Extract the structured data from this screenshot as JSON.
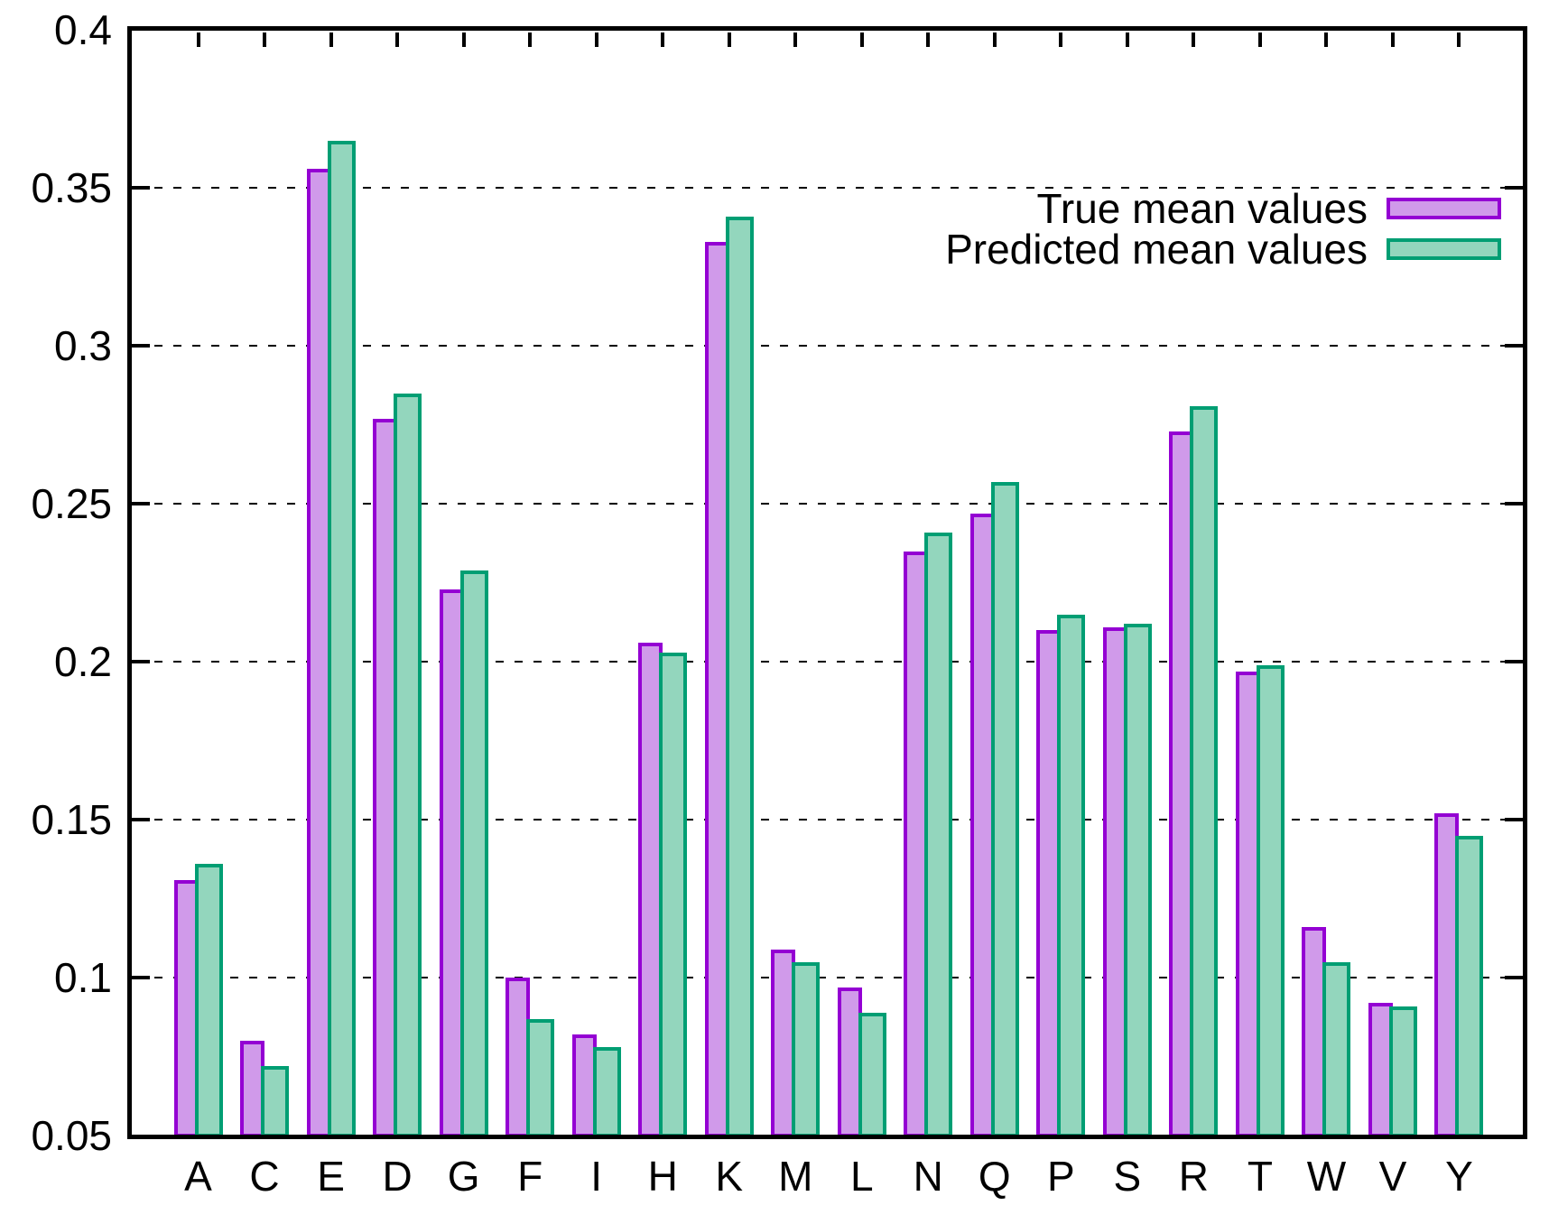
{
  "chart_data": {
    "type": "bar",
    "title": "",
    "xlabel": "",
    "ylabel": "",
    "categories": [
      "A",
      "C",
      "E",
      "D",
      "G",
      "F",
      "I",
      "H",
      "K",
      "M",
      "L",
      "N",
      "Q",
      "P",
      "S",
      "R",
      "T",
      "W",
      "V",
      "Y"
    ],
    "series": [
      {
        "name": "True mean values",
        "fill_color": "#d09aea",
        "line_color": "#9400d3",
        "values": [
          0.131,
          0.08,
          0.356,
          0.277,
          0.223,
          0.1,
          0.082,
          0.206,
          0.333,
          0.109,
          0.097,
          0.235,
          0.247,
          0.21,
          0.211,
          0.273,
          0.197,
          0.116,
          0.092,
          0.152
        ]
      },
      {
        "name": "Predicted mean values",
        "fill_color": "#93d6bd",
        "line_color": "#009e73",
        "values": [
          0.136,
          0.072,
          0.365,
          0.285,
          0.229,
          0.087,
          0.078,
          0.203,
          0.341,
          0.105,
          0.089,
          0.241,
          0.257,
          0.215,
          0.212,
          0.281,
          0.199,
          0.105,
          0.091,
          0.145
        ]
      }
    ],
    "ylim": [
      0.05,
      0.4
    ],
    "yticks": [
      0.05,
      0.1,
      0.15,
      0.2,
      0.25,
      0.3,
      0.35,
      0.4
    ],
    "ytick_labels": [
      "0.05",
      "0.1",
      "0.15",
      "0.2",
      "0.25",
      "0.3",
      "0.35",
      "0.4"
    ],
    "grid": "horizontal dashed gridlines at interior y ticks",
    "legend_position": "top-right inside plot",
    "axis_color": "#000000",
    "background_color": "#ffffff",
    "text_color": "#000000"
  }
}
